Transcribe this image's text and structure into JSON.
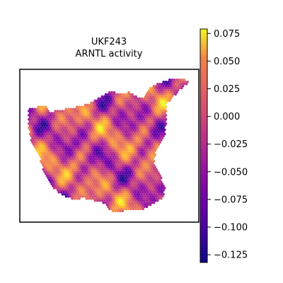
{
  "chart_data": {
    "type": "heatmap",
    "title_lines": [
      "UKF243",
      "ARNTL activity"
    ],
    "colormap": "plasma",
    "colorbar": {
      "vmin": -0.132,
      "vmax": 0.079,
      "ticks": [
        0.075,
        0.05,
        0.025,
        0.0,
        -0.025,
        -0.05,
        -0.075,
        -0.1,
        -0.125
      ],
      "tick_labels": [
        "0.075",
        "0.050",
        "0.025",
        "0.000",
        "−0.025",
        "−0.050",
        "−0.075",
        "−0.100",
        "−0.125"
      ]
    },
    "grid": false,
    "legend": "colorbar-right"
  }
}
